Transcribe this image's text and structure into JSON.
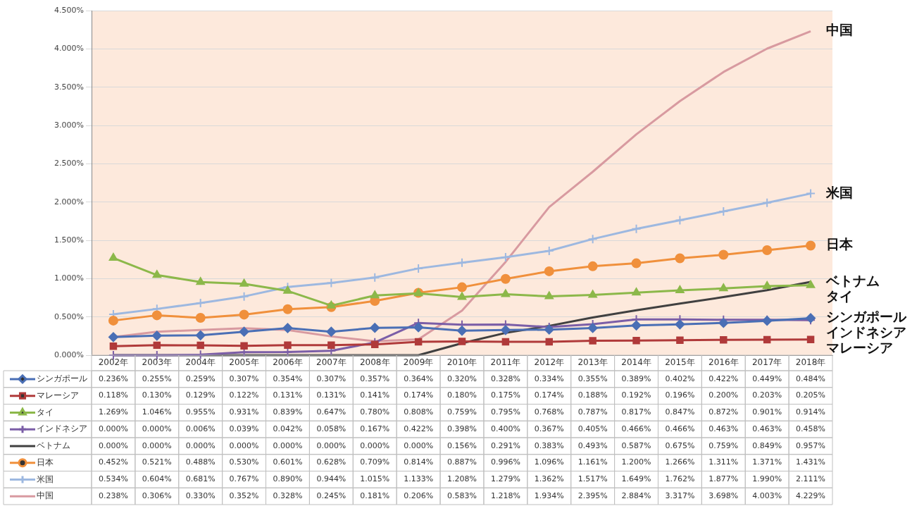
{
  "chart_data": {
    "type": "line",
    "categories": [
      "2002年",
      "2003年",
      "2004年",
      "2005年",
      "2006年",
      "2007年",
      "2008年",
      "2009年",
      "2010年",
      "2011年",
      "2012年",
      "2013年",
      "2014年",
      "2015年",
      "2016年",
      "2017年",
      "2018年"
    ],
    "ylim": [
      0,
      4.5
    ],
    "yticks": [
      {
        "value": 0,
        "label": "0.000%"
      },
      {
        "value": 0.5,
        "label": "0.500%"
      },
      {
        "value": 1,
        "label": "1.000%"
      },
      {
        "value": 1.5,
        "label": "1.500%"
      },
      {
        "value": 2,
        "label": "2.000%"
      },
      {
        "value": 2.5,
        "label": "2.500%"
      },
      {
        "value": 3,
        "label": "3.000%"
      },
      {
        "value": 3.5,
        "label": "3.500%"
      },
      {
        "value": 4,
        "label": "4.000%"
      },
      {
        "value": 4.5,
        "label": "4.500%"
      }
    ],
    "grid": "y",
    "legend": "bottom left",
    "series": [
      {
        "name": "シンガポール",
        "color": "#4a6fb5",
        "marker": "diamond",
        "values": [
          0.236,
          0.255,
          0.259,
          0.307,
          0.354,
          0.307,
          0.357,
          0.364,
          0.32,
          0.328,
          0.334,
          0.355,
          0.389,
          0.402,
          0.422,
          0.449,
          0.484
        ],
        "value_labels": [
          "0.236%",
          "0.255%",
          "0.259%",
          "0.307%",
          "0.354%",
          "0.307%",
          "0.357%",
          "0.364%",
          "0.320%",
          "0.328%",
          "0.334%",
          "0.355%",
          "0.389%",
          "0.402%",
          "0.422%",
          "0.449%",
          "0.484%"
        ]
      },
      {
        "name": "マレーシア",
        "color": "#b03a3a",
        "marker": "square",
        "values": [
          0.118,
          0.13,
          0.129,
          0.122,
          0.131,
          0.131,
          0.141,
          0.174,
          0.18,
          0.175,
          0.174,
          0.188,
          0.192,
          0.196,
          0.2,
          0.203,
          0.205
        ],
        "value_labels": [
          "0.118%",
          "0.130%",
          "0.129%",
          "0.122%",
          "0.131%",
          "0.131%",
          "0.141%",
          "0.174%",
          "0.180%",
          "0.175%",
          "0.174%",
          "0.188%",
          "0.192%",
          "0.196%",
          "0.200%",
          "0.203%",
          "0.205%"
        ]
      },
      {
        "name": "タイ",
        "color": "#8cb84a",
        "marker": "triangle",
        "values": [
          1.269,
          1.046,
          0.955,
          0.931,
          0.839,
          0.647,
          0.78,
          0.808,
          0.759,
          0.795,
          0.768,
          0.787,
          0.817,
          0.847,
          0.872,
          0.901,
          0.914
        ],
        "value_labels": [
          "1.269%",
          "1.046%",
          "0.955%",
          "0.931%",
          "0.839%",
          "0.647%",
          "0.780%",
          "0.808%",
          "0.759%",
          "0.795%",
          "0.768%",
          "0.787%",
          "0.817%",
          "0.847%",
          "0.872%",
          "0.901%",
          "0.914%"
        ]
      },
      {
        "name": "インドネシア",
        "color": "#7b5ea7",
        "marker": "cross",
        "values": [
          0.0,
          0.0,
          0.006,
          0.039,
          0.042,
          0.058,
          0.167,
          0.422,
          0.398,
          0.4,
          0.367,
          0.405,
          0.466,
          0.466,
          0.463,
          0.463,
          0.458
        ],
        "value_labels": [
          "0.000%",
          "0.000%",
          "0.006%",
          "0.039%",
          "0.042%",
          "0.058%",
          "0.167%",
          "0.422%",
          "0.398%",
          "0.400%",
          "0.367%",
          "0.405%",
          "0.466%",
          "0.466%",
          "0.463%",
          "0.463%",
          "0.458%"
        ]
      },
      {
        "name": "ベトナム",
        "color": "#404040",
        "marker": "none",
        "values": [
          0.0,
          0.0,
          0.0,
          0.0,
          0.0,
          0.0,
          0.0,
          0.0,
          0.156,
          0.291,
          0.383,
          0.493,
          0.587,
          0.675,
          0.759,
          0.849,
          0.957
        ],
        "value_labels": [
          "0.000%",
          "0.000%",
          "0.000%",
          "0.000%",
          "0.000%",
          "0.000%",
          "0.000%",
          "0.000%",
          "0.156%",
          "0.291%",
          "0.383%",
          "0.493%",
          "0.587%",
          "0.675%",
          "0.759%",
          "0.849%",
          "0.957%"
        ]
      },
      {
        "name": "日本",
        "color": "#f0903c",
        "marker": "circle",
        "values": [
          0.452,
          0.521,
          0.488,
          0.53,
          0.601,
          0.628,
          0.709,
          0.814,
          0.887,
          0.996,
          1.096,
          1.161,
          1.2,
          1.266,
          1.311,
          1.371,
          1.431
        ],
        "value_labels": [
          "0.452%",
          "0.521%",
          "0.488%",
          "0.530%",
          "0.601%",
          "0.628%",
          "0.709%",
          "0.814%",
          "0.887%",
          "0.996%",
          "1.096%",
          "1.161%",
          "1.200%",
          "1.266%",
          "1.311%",
          "1.371%",
          "1.431%"
        ]
      },
      {
        "name": "米国",
        "color": "#9db8e0",
        "marker": "cross",
        "values": [
          0.534,
          0.604,
          0.681,
          0.767,
          0.89,
          0.944,
          1.015,
          1.133,
          1.208,
          1.279,
          1.362,
          1.517,
          1.649,
          1.762,
          1.877,
          1.99,
          2.111
        ],
        "value_labels": [
          "0.534%",
          "0.604%",
          "0.681%",
          "0.767%",
          "0.890%",
          "0.944%",
          "1.015%",
          "1.133%",
          "1.208%",
          "1.279%",
          "1.362%",
          "1.517%",
          "1.649%",
          "1.762%",
          "1.877%",
          "1.990%",
          "2.111%"
        ]
      },
      {
        "name": "中国",
        "color": "#d89aa0",
        "marker": "none",
        "values": [
          0.238,
          0.306,
          0.33,
          0.352,
          0.328,
          0.245,
          0.181,
          0.206,
          0.583,
          1.218,
          1.934,
          2.395,
          2.884,
          3.317,
          3.698,
          4.003,
          4.229
        ],
        "value_labels": [
          "0.238%",
          "0.306%",
          "0.330%",
          "0.352%",
          "0.328%",
          "0.245%",
          "0.181%",
          "0.206%",
          "0.583%",
          "1.218%",
          "1.934%",
          "2.395%",
          "2.884%",
          "3.317%",
          "3.698%",
          "4.003%",
          "4.229%"
        ]
      }
    ]
  }
}
